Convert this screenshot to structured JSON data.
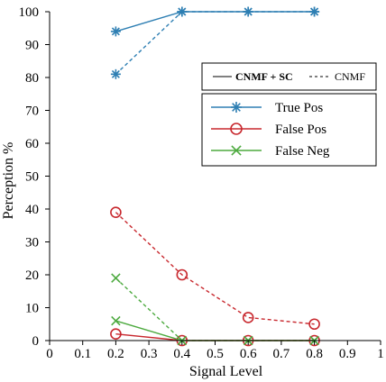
{
  "chart_data": {
    "type": "line",
    "title": "",
    "xlabel": "Signal Level",
    "ylabel": "Perception %",
    "xlim": [
      0,
      1
    ],
    "ylim": [
      0,
      100
    ],
    "xticks": [
      "0",
      "0.1",
      "0.2",
      "0.3",
      "0.4",
      "0.5",
      "0.6",
      "0.7",
      "0.8",
      "0.9",
      "1"
    ],
    "yticks": [
      "0",
      "10",
      "20",
      "30",
      "40",
      "50",
      "60",
      "70",
      "80",
      "90",
      "100"
    ],
    "grid": false,
    "legend_placement": "top-right",
    "line_style_legend": {
      "solid_label": "CNMF + SC",
      "dashed_label": "CNMF"
    },
    "series": [
      {
        "name": "True Pos",
        "method": "CNMF + SC",
        "style": "solid",
        "marker": "asterisk",
        "color": "#2e7fb3",
        "x": [
          0.2,
          0.4,
          0.6,
          0.8
        ],
        "values": [
          94,
          100,
          100,
          100
        ]
      },
      {
        "name": "True Pos",
        "method": "CNMF",
        "style": "dashed",
        "marker": "asterisk",
        "color": "#2e7fb3",
        "x": [
          0.2,
          0.4,
          0.6,
          0.8
        ],
        "values": [
          81,
          100,
          100,
          100
        ]
      },
      {
        "name": "False Pos",
        "method": "CNMF + SC",
        "style": "solid",
        "marker": "circle",
        "color": "#c8282e",
        "x": [
          0.2,
          0.4,
          0.6,
          0.8
        ],
        "values": [
          2,
          0,
          0,
          0
        ]
      },
      {
        "name": "False Pos",
        "method": "CNMF",
        "style": "dashed",
        "marker": "circle",
        "color": "#c8282e",
        "x": [
          0.2,
          0.4,
          0.6,
          0.8
        ],
        "values": [
          39,
          20,
          7,
          5
        ]
      },
      {
        "name": "False Neg",
        "method": "CNMF + SC",
        "style": "solid",
        "marker": "cross",
        "color": "#4daa3f",
        "x": [
          0.2,
          0.4,
          0.6,
          0.8
        ],
        "values": [
          6,
          0,
          0,
          0
        ]
      },
      {
        "name": "False Neg",
        "method": "CNMF",
        "style": "dashed",
        "marker": "cross",
        "color": "#4daa3f",
        "x": [
          0.2,
          0.4,
          0.6,
          0.8
        ],
        "values": [
          19,
          0,
          0,
          0
        ]
      }
    ],
    "legend_entries": [
      {
        "label": "True Pos",
        "marker": "asterisk",
        "color": "#2e7fb3"
      },
      {
        "label": "False Pos",
        "marker": "circle",
        "color": "#c8282e"
      },
      {
        "label": "False Neg",
        "marker": "cross",
        "color": "#4daa3f"
      }
    ]
  }
}
